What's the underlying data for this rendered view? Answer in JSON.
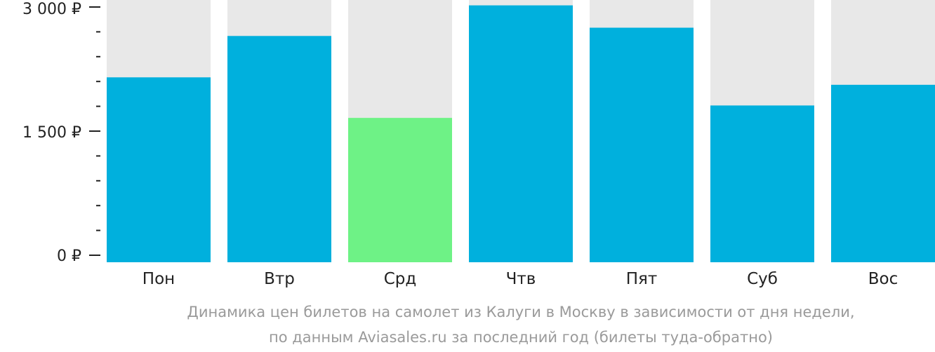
{
  "chart_data": {
    "type": "bar",
    "categories": [
      "Пон",
      "Втр",
      "Срд",
      "Чтв",
      "Пят",
      "Суб",
      "Вос"
    ],
    "values": [
      2150,
      2650,
      1660,
      3020,
      2750,
      1810,
      2060
    ],
    "highlight_index": 2,
    "ylim": [
      0,
      3000
    ],
    "yticks": [
      {
        "value": 0,
        "label": "0 ₽"
      },
      {
        "value": 1500,
        "label": "1 500 ₽"
      },
      {
        "value": 3000,
        "label": "3 000 ₽"
      }
    ],
    "minor_tick_step": 300,
    "caption": [
      "Динамика цен билетов на самолет из Калуги в Москву в зависимости от дня недели,",
      "по данным Aviasales.ru за последний год (билеты туда-обратно)"
    ],
    "colors": {
      "bar": "#00b0dd",
      "highlight": "#6ef286",
      "track": "#e8e8e8",
      "axis": "#222222",
      "caption": "#9a9a9a"
    }
  }
}
